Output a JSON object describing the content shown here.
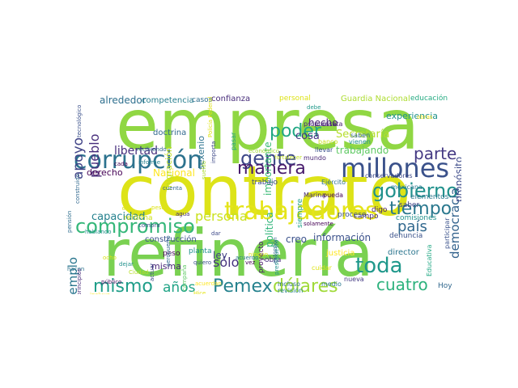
{
  "words": [
    {
      "text": "empresa",
      "color": "#90d743"
    },
    {
      "text": "contrato",
      "color": "#dde318"
    },
    {
      "text": "refinería",
      "color": "#7ad151"
    },
    {
      "text": "trabajadores",
      "color": "#e5e419"
    },
    {
      "text": "millones",
      "color": "#3b528b"
    },
    {
      "text": "corrupción",
      "color": "#2c728e"
    },
    {
      "text": "gobierno",
      "color": "#21918c"
    },
    {
      "text": "compromiso",
      "color": "#35b779"
    },
    {
      "text": "mismo",
      "color": "#1f9e89"
    },
    {
      "text": "Pemex",
      "color": "#26828e"
    },
    {
      "text": "dólares",
      "color": "#a0da39"
    },
    {
      "text": "toda",
      "color": "#1f988b"
    },
    {
      "text": "cuatro",
      "color": "#2db27d"
    },
    {
      "text": "tiempo",
      "color": "#2a788e"
    },
    {
      "text": "país",
      "color": "#31688e"
    },
    {
      "text": "parte",
      "color": "#443983"
    },
    {
      "text": "gente",
      "color": "#3e4989"
    },
    {
      "text": "poder",
      "color": "#22a884"
    },
    {
      "text": "manera",
      "color": "#481b6d"
    },
    {
      "text": "apoyo",
      "color": "#414487"
    },
    {
      "text": "pueblo",
      "color": "#472d7b"
    },
    {
      "text": "persona",
      "color": "#cae11f"
    },
    {
      "text": "años",
      "color": "#20a486"
    },
    {
      "text": "democracia",
      "color": "#33638d"
    },
    {
      "text": "sólo",
      "color": "#46337e"
    },
    {
      "text": "ejemplo",
      "color": "#2a768e"
    },
    {
      "text": "libertad",
      "color": "#472f7d"
    },
    {
      "text": "alrededor",
      "color": "#2e6f8e"
    },
    {
      "text": "importante",
      "color": "#3aba76"
    },
    {
      "text": "trabajando",
      "color": "#5ec962"
    },
    {
      "text": "Secretaría",
      "color": "#b5de2b"
    },
    {
      "text": "capacidad",
      "color": "#26828e"
    },
    {
      "text": "información",
      "color": "#3b518b"
    },
    {
      "text": "política",
      "color": "#31b57b"
    },
    {
      "text": "cosa",
      "color": "#453581"
    },
    {
      "text": "hecho",
      "color": "#482173"
    },
    {
      "text": "ley",
      "color": "#424086"
    },
    {
      "text": "creo",
      "color": "#3b528b"
    },
    {
      "text": "misma",
      "color": "#482677"
    },
    {
      "text": "sexenio",
      "color": "#2c728e"
    },
    {
      "text": "propósito",
      "color": "#3e4c8a"
    },
    {
      "text": "experiencia",
      "color": "#20928c"
    },
    {
      "text": "Guardia Nacional",
      "color": "#addc30"
    },
    {
      "text": "derecho",
      "color": "#440154"
    },
    {
      "text": "Nacional",
      "color": "#fde725"
    },
    {
      "text": "confianza",
      "color": "#472c7a"
    },
    {
      "text": "competencia",
      "color": "#277f8e"
    },
    {
      "text": "casos",
      "color": "#2e6e8e"
    },
    {
      "text": "personal",
      "color": "#dde318"
    },
    {
      "text": "educación",
      "color": "#25ab82"
    },
    {
      "text": "doctrina",
      "color": "#31688e"
    },
    {
      "text": "migración",
      "color": "#c2df23"
    },
    {
      "text": "construcción",
      "color": "#3b528b"
    },
    {
      "text": "reforma",
      "color": "#cde11d"
    },
    {
      "text": "peso",
      "color": "#440154"
    },
    {
      "text": "planta",
      "color": "#21918c"
    },
    {
      "text": "obra",
      "color": "#472d7b"
    },
    {
      "text": "trabajo",
      "color": "#3e4989"
    },
    {
      "text": "siempre",
      "color": "#1fa188"
    },
    {
      "text": "proyecto",
      "color": "#481769"
    },
    {
      "text": "justicia",
      "color": "#fde725"
    },
    {
      "text": "director",
      "color": "#2b758e"
    },
    {
      "text": "denuncia",
      "color": "#3b528b"
    },
    {
      "text": "comisiones",
      "color": "#21918c"
    },
    {
      "text": "elementos",
      "color": "#2a788e"
    },
    {
      "text": "saber",
      "color": "#414487"
    },
    {
      "text": "digo",
      "color": "#481f70"
    },
    {
      "text": "campo",
      "color": "#482878"
    },
    {
      "text": "proceso",
      "color": "#3b528b"
    },
    {
      "text": "pueda",
      "color": "#440154"
    },
    {
      "text": "Marina",
      "color": "#472d7b"
    },
    {
      "text": "Ejército",
      "color": "#2c728e"
    },
    {
      "text": "conservadores",
      "color": "#3e4a89"
    },
    {
      "text": "mexicana",
      "color": "#2a788e"
    },
    {
      "text": "Hoy",
      "color": "#31688e"
    },
    {
      "text": "participar",
      "color": "#3b528b"
    },
    {
      "text": "Educativa",
      "color": "#22a884"
    },
    {
      "text": "cuidar",
      "color": "#dde318"
    },
    {
      "text": "incluso",
      "color": "#2c728e"
    },
    {
      "text": "revisión",
      "color": "#26828e"
    },
    {
      "text": "medio",
      "color": "#2a788e"
    },
    {
      "text": "nueva",
      "color": "#443983"
    },
    {
      "text": "llevar",
      "color": "#3b528b"
    },
    {
      "text": "mundo",
      "color": "#482475"
    },
    {
      "text": "banco",
      "color": "#c8e020"
    },
    {
      "text": "caseta",
      "color": "#482173"
    },
    {
      "text": "propuesta",
      "color": "#482677"
    },
    {
      "text": "saben",
      "color": "#31688e"
    },
    {
      "text": "vienen",
      "color": "#21918c"
    },
    {
      "text": "pasar",
      "color": "#1fa187"
    },
    {
      "text": "debe",
      "color": "#1f998a"
    },
    {
      "text": "económico",
      "color": "#a2da37"
    },
    {
      "text": "importa",
      "color": "#3e4989"
    },
    {
      "text": "recibiendo",
      "color": "#31688e"
    },
    {
      "text": "informe",
      "color": "#27808e"
    },
    {
      "text": "cada",
      "color": "#440154"
    },
    {
      "text": "pensión",
      "color": "#2e6e8e"
    },
    {
      "text": "construido",
      "color": "#31688e"
    },
    {
      "text": "hacen",
      "color": "#2c728e"
    },
    {
      "text": "principios",
      "color": "#482878"
    },
    {
      "text": "tecnológico",
      "color": "#3b518b"
    },
    {
      "text": "público",
      "color": "#460b5e"
    },
    {
      "text": "incluye",
      "color": "#fde725"
    },
    {
      "text": "Policía",
      "color": "#dfe318"
    },
    {
      "text": "Ciudad",
      "color": "#b8de29"
    },
    {
      "text": "actuar",
      "color": "#3e4a89"
    },
    {
      "text": "dejar",
      "color": "#21918c"
    },
    {
      "text": "ocho",
      "color": "#d8e219"
    },
    {
      "text": "aeropuerto",
      "color": "#31688e"
    },
    {
      "text": "quiero",
      "color": "#3b528b"
    },
    {
      "text": "campaña",
      "color": "#5ec962"
    },
    {
      "text": "acuerdan",
      "color": "#fde725"
    },
    {
      "text": "Hice",
      "color": "#e5e419"
    },
    {
      "text": "acuerdo",
      "color": "#2a788e"
    },
    {
      "text": "vez",
      "color": "#440154"
    },
    {
      "text": "ningún",
      "color": "#dde318"
    },
    {
      "text": "presupuesto",
      "color": "#21918c"
    },
    {
      "text": "extorsión",
      "color": "#31688e"
    },
    {
      "text": "dar",
      "color": "#3e4989"
    },
    {
      "text": "Policía Federal",
      "color": "#dfe318"
    },
    {
      "text": "sueldo",
      "color": "#addc30"
    },
    {
      "text": "pesos",
      "color": "#dde318"
    },
    {
      "text": "compra",
      "color": "#3b528b"
    },
    {
      "text": "fortalecer",
      "color": "#c0df25"
    },
    {
      "text": "cuenta",
      "color": "#31688e"
    },
    {
      "text": "obras",
      "color": "#fde725"
    },
    {
      "text": "hablando",
      "color": "#21918c"
    },
    {
      "text": "solamente",
      "color": "#440154"
    },
    {
      "text": "agua",
      "color": "#472d7b"
    }
  ]
}
